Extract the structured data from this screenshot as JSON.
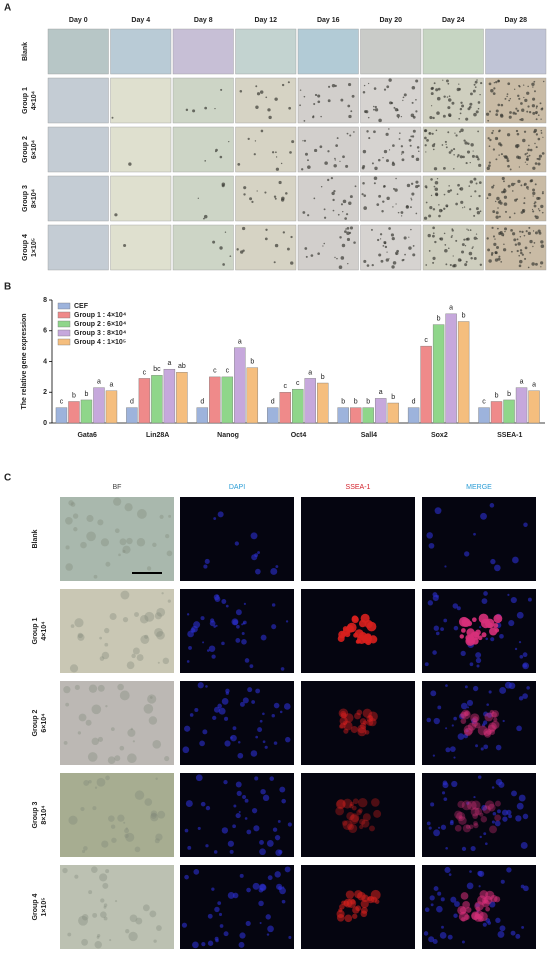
{
  "panel_a": {
    "letter": "A",
    "days": [
      "Day 0",
      "Day 4",
      "Day 8",
      "Day 12",
      "Day 16",
      "Day 20",
      "Day 24",
      "Day 28"
    ],
    "rows": [
      {
        "name": "Blank"
      },
      {
        "name": "Group 1",
        "density": "4×10⁴"
      },
      {
        "name": "Group 2",
        "density": "6×10⁴"
      },
      {
        "name": "Group 3",
        "density": "8×10⁴"
      },
      {
        "name": "Group 4",
        "density": "1×10⁵"
      }
    ]
  },
  "panel_b": {
    "letter": "B"
  },
  "chart_data": {
    "type": "bar",
    "y_label": "The relative gene expression",
    "categories": [
      "Gata6",
      "Lin28A",
      "Nanog",
      "Oct4",
      "Sall4",
      "Sox2",
      "SSEA-1"
    ],
    "series": [
      {
        "name": "CEF",
        "color": "#9db3dc",
        "values": [
          1,
          1,
          1,
          1,
          1,
          1,
          1
        ],
        "letters": [
          "c",
          "d",
          "d",
          "d",
          "b",
          "d",
          "c"
        ]
      },
      {
        "name": "Group 1 : 4×10⁴",
        "color": "#ef8a8a",
        "values": [
          1.4,
          2.9,
          3.0,
          2.0,
          1.0,
          5.0,
          1.4
        ],
        "letters": [
          "b",
          "c",
          "c",
          "c",
          "b",
          "c",
          "b"
        ]
      },
      {
        "name": "Group 2 : 6×10⁴",
        "color": "#8fd68a",
        "values": [
          1.5,
          3.1,
          3.0,
          2.2,
          1.0,
          6.4,
          1.5
        ],
        "letters": [
          "b",
          "bc",
          "c",
          "c",
          "b",
          "b",
          "b"
        ]
      },
      {
        "name": "Group 3 : 8×10⁴",
        "color": "#c6a8dc",
        "values": [
          2.3,
          3.5,
          4.9,
          2.9,
          1.6,
          7.1,
          2.3
        ],
        "letters": [
          "a",
          "a",
          "a",
          "a",
          "a",
          "a",
          "a"
        ]
      },
      {
        "name": "Group 4 : 1×10⁵",
        "color": "#f5be7e",
        "values": [
          2.1,
          3.3,
          3.6,
          2.6,
          1.3,
          6.6,
          2.1
        ],
        "letters": [
          "a",
          "ab",
          "b",
          "b",
          "b",
          "b",
          "a"
        ]
      }
    ],
    "ylim": [
      0,
      8
    ],
    "yticks": [
      0,
      2,
      4,
      6,
      8
    ],
    "legend": "upper-left"
  },
  "panel_c": {
    "letter": "C",
    "channels": [
      "BF",
      "DAPI",
      "SSEA-1",
      "MERGE"
    ],
    "rows": [
      {
        "name": "Blank"
      },
      {
        "name": "Group 1",
        "density": "4×10⁴"
      },
      {
        "name": "Group 2",
        "density": "6×10⁴"
      },
      {
        "name": "Group 3",
        "density": "8×10⁴"
      },
      {
        "name": "Group 4",
        "density": "1×10⁵"
      }
    ]
  }
}
